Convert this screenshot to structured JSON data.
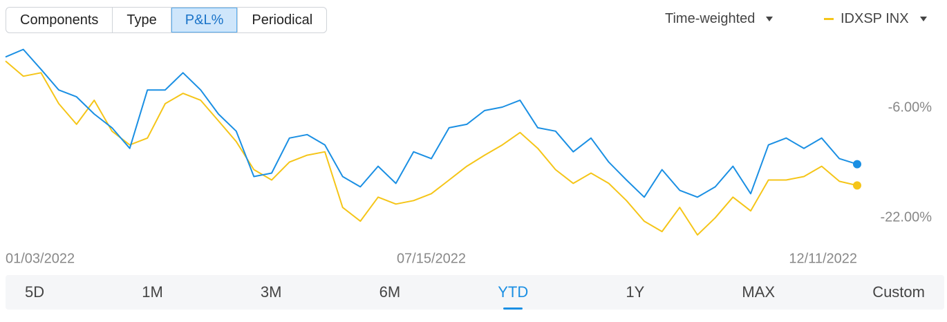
{
  "tabs": [
    {
      "label": "Components",
      "selected": false
    },
    {
      "label": "Type",
      "selected": false
    },
    {
      "label": "P&L%",
      "selected": true
    },
    {
      "label": "Periodical",
      "selected": false
    }
  ],
  "weighting": "Time-weighted",
  "ranges": [
    {
      "label": "5D",
      "selected": false
    },
    {
      "label": "1M",
      "selected": false
    },
    {
      "label": "3M",
      "selected": false
    },
    {
      "label": "6M",
      "selected": false
    },
    {
      "label": "YTD",
      "selected": true
    },
    {
      "label": "1Y",
      "selected": false
    },
    {
      "label": "MAX",
      "selected": false
    },
    {
      "label": "Custom",
      "selected": false
    }
  ],
  "chart_data": {
    "type": "line",
    "categories": [
      "01/03/2022",
      null,
      null,
      null,
      null,
      null,
      null,
      null,
      null,
      null,
      null,
      null,
      null,
      null,
      null,
      null,
      null,
      null,
      null,
      null,
      null,
      null,
      null,
      null,
      "07/15/2022",
      null,
      null,
      null,
      null,
      null,
      null,
      null,
      null,
      null,
      null,
      null,
      null,
      null,
      null,
      null,
      null,
      null,
      null,
      null,
      null,
      null,
      null,
      null,
      "12/11/2022"
    ],
    "series": [
      {
        "color": "#1a8fe3",
        "values": [
          1.4,
          2.5,
          -0.4,
          -3.4,
          -4.4,
          -6.9,
          -8.9,
          -11.9,
          -3.4,
          -3.4,
          -0.9,
          -3.4,
          -6.9,
          -9.4,
          -16.0,
          -15.5,
          -10.4,
          -9.9,
          -11.4,
          -16.0,
          -17.5,
          -14.5,
          -17.0,
          -12.4,
          -13.4,
          -8.9,
          -8.4,
          -6.4,
          -5.9,
          -4.9,
          -8.9,
          -9.4,
          -12.4,
          -10.4,
          -13.9,
          -16.5,
          -19.0,
          -15.0,
          -18.0,
          -19.0,
          -17.5,
          -14.5,
          -18.5,
          -11.4,
          -10.4,
          -11.9,
          -10.4,
          -13.4,
          -14.2
        ]
      },
      {
        "name": "IDXSP INX",
        "color": "#f5c518",
        "values": [
          0.8,
          -1.4,
          -0.9,
          -5.4,
          -8.4,
          -4.9,
          -9.4,
          -11.4,
          -10.4,
          -5.4,
          -3.9,
          -4.9,
          -7.9,
          -10.9,
          -15.0,
          -16.5,
          -13.9,
          -12.9,
          -12.4,
          -20.5,
          -22.5,
          -19.0,
          -20.0,
          -19.5,
          -18.5,
          -16.5,
          -14.5,
          -12.9,
          -11.4,
          -9.6,
          -11.9,
          -15.0,
          -17.0,
          -15.5,
          -17.0,
          -19.5,
          -22.5,
          -24.0,
          -20.5,
          -24.5,
          -22.0,
          -19.0,
          -21.0,
          -16.5,
          -16.5,
          -16.0,
          -14.5,
          -16.7,
          -17.3
        ]
      }
    ],
    "ylim": [
      -25,
      3
    ],
    "yticks": [
      {
        "value": -6,
        "label": "-6.00%"
      },
      {
        "value": -22,
        "label": "-22.00%"
      }
    ],
    "end_markers": true
  }
}
